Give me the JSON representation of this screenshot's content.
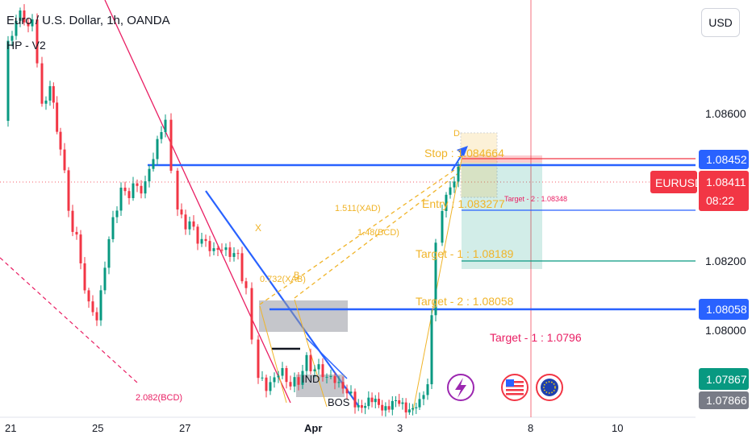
{
  "header": {
    "title": "Euro / U.S. Dollar, 1h, OANDA",
    "indicator": "HP - V2",
    "currency_button": "USD"
  },
  "chart_data": {
    "type": "candlestick",
    "symbol": "EURUSD",
    "y_axis": {
      "range": [
        1.0785,
        1.0873
      ],
      "ticks": [
        "1.08600",
        "1.08200",
        "1.08000"
      ]
    },
    "x_axis": {
      "ticks": [
        "21",
        "25",
        "27",
        "Apr",
        "3",
        "8",
        "10"
      ]
    },
    "price_labels": [
      {
        "label": "1.08452",
        "value": 1.08452,
        "color": "#2962ff"
      },
      {
        "label": "1.08411",
        "value": 1.08411,
        "color": "#f23645",
        "symbol": "EURUSD",
        "countdown": "08:22"
      },
      {
        "label": "1.08058",
        "value": 1.08058,
        "color": "#2962ff"
      },
      {
        "label": "1.07867",
        "value": 1.07867,
        "color": "#089981"
      },
      {
        "label": "1.07866",
        "value": 1.07866,
        "color": "#787b86"
      }
    ],
    "annotations": {
      "stop": "Stop : 1.084664",
      "entry": "Entry : 1.083277",
      "target1": "Target - 1 : 1.08189",
      "target2": "Target - 2 : 1.08058",
      "target_small": "Target - 2 : 1.08348",
      "target_red": "Target - 1 : 1.0796",
      "ratio_xad": "1.511(XAD)",
      "ratio_bcd": "1.48(BCD)",
      "ratio_xab": "0.732(XAB)",
      "ratio_bcd2": "2.082(BCD)",
      "point_x": "X",
      "point_b": "B",
      "point_d": "D",
      "label_ind": "IND",
      "label_bos": "BOS"
    },
    "colors": {
      "up": "#089981",
      "down": "#f23645",
      "blue": "#2962ff",
      "pattern": "#f0b429",
      "trend_red": "#e91e63"
    },
    "icons": [
      "lightning-icon",
      "us-flag-icon",
      "eu-flag-icon"
    ]
  }
}
